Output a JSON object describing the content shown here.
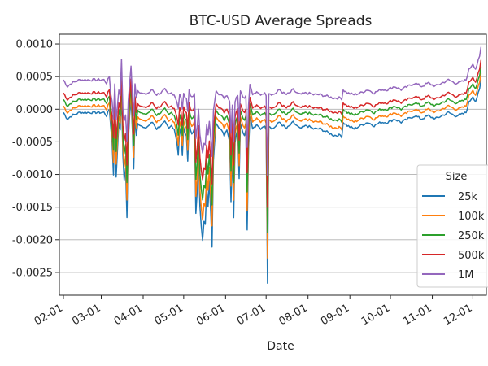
{
  "chart_data": {
    "type": "line",
    "title": "BTC-USD Average Spreads",
    "xlabel": "Date",
    "ylabel": "",
    "xlim": [
      -3,
      313
    ],
    "ylim": [
      -0.00285,
      0.00115
    ],
    "grid": true,
    "x_ticks": [
      {
        "x": 0,
        "label": "02-01"
      },
      {
        "x": 28,
        "label": "03-01"
      },
      {
        "x": 59,
        "label": "04-01"
      },
      {
        "x": 89,
        "label": "05-01"
      },
      {
        "x": 120,
        "label": "06-01"
      },
      {
        "x": 150,
        "label": "07-01"
      },
      {
        "x": 181,
        "label": "08-01"
      },
      {
        "x": 212,
        "label": "09-01"
      },
      {
        "x": 242,
        "label": "10-01"
      },
      {
        "x": 273,
        "label": "11-01"
      },
      {
        "x": 303,
        "label": "12-01"
      }
    ],
    "y_ticks": [
      {
        "v": 0.001,
        "label": "0.0010"
      },
      {
        "v": 0.0005,
        "label": "0.0005"
      },
      {
        "v": 0.0,
        "label": "0.0000"
      },
      {
        "v": -0.0005,
        "label": "-0.0005"
      },
      {
        "v": -0.001,
        "label": "-0.0010"
      },
      {
        "v": -0.0015,
        "label": "-0.0015"
      },
      {
        "v": -0.002,
        "label": "-0.0020"
      },
      {
        "v": -0.0025,
        "label": "-0.0025"
      }
    ],
    "legend": {
      "title": "Size",
      "placement": "lower-right"
    },
    "series": [
      {
        "name": "25k",
        "color": "#1f77b4",
        "offset": 0.0
      },
      {
        "name": "100k",
        "color": "#ff7f0e",
        "offset": 0.0001
      },
      {
        "name": "250k",
        "color": "#2ca02c",
        "offset": 0.0002
      },
      {
        "name": "500k",
        "color": "#d62728",
        "offset": 0.0003
      },
      {
        "name": "1M",
        "color": "#9467bd",
        "offset": 0.0005
      }
    ],
    "base_keypoints": [
      [
        0,
        -5e-05
      ],
      [
        3,
        -0.00015
      ],
      [
        6,
        -0.0001
      ],
      [
        12,
        -5e-05
      ],
      [
        18,
        -5e-05
      ],
      [
        24,
        -5e-05
      ],
      [
        30,
        -5e-05
      ],
      [
        32,
        -0.0001
      ],
      [
        34,
        0.0
      ],
      [
        36,
        -0.0005
      ],
      [
        37,
        -0.001
      ],
      [
        38,
        -0.0001
      ],
      [
        39,
        -0.00105
      ],
      [
        41,
        -0.0002
      ],
      [
        42,
        -0.0003
      ],
      [
        43,
        0.00025
      ],
      [
        44,
        -0.0007
      ],
      [
        45,
        -0.0011
      ],
      [
        46,
        -0.0009
      ],
      [
        47,
        -0.00165
      ],
      [
        48,
        -0.0005
      ],
      [
        49,
        -0.0001
      ],
      [
        50,
        0.00015
      ],
      [
        51,
        -0.0003
      ],
      [
        52,
        -0.0009
      ],
      [
        53,
        -0.0001
      ],
      [
        54,
        -0.0004
      ],
      [
        55,
        -0.0002
      ],
      [
        57,
        -0.00025
      ],
      [
        60,
        -0.0003
      ],
      [
        63,
        -0.00025
      ],
      [
        66,
        -0.0002
      ],
      [
        69,
        -0.0003
      ],
      [
        72,
        -0.00025
      ],
      [
        75,
        -0.0002
      ],
      [
        78,
        -0.0003
      ],
      [
        80,
        -0.00025
      ],
      [
        82,
        -0.0003
      ],
      [
        84,
        -0.0005
      ],
      [
        85,
        -0.0007
      ],
      [
        86,
        -0.0003
      ],
      [
        87,
        -0.0004
      ],
      [
        88,
        -0.0007
      ],
      [
        89,
        -0.0003
      ],
      [
        91,
        -0.0004
      ],
      [
        92,
        -0.0008
      ],
      [
        93,
        -0.0002
      ],
      [
        95,
        -0.0004
      ],
      [
        97,
        -0.0003
      ],
      [
        98,
        -0.0016
      ],
      [
        99,
        -0.00125
      ],
      [
        100,
        -0.0007
      ],
      [
        101,
        -0.0015
      ],
      [
        102,
        -0.0018
      ],
      [
        103,
        -0.002
      ],
      [
        104,
        -0.0017
      ],
      [
        105,
        -0.00175
      ],
      [
        106,
        -0.0012
      ],
      [
        107,
        -0.0015
      ],
      [
        108,
        -0.0011
      ],
      [
        109,
        -0.0016
      ],
      [
        110,
        -0.0021
      ],
      [
        111,
        -0.0008
      ],
      [
        112,
        -0.00045
      ],
      [
        113,
        -0.0002
      ],
      [
        116,
        -0.0003
      ],
      [
        119,
        -0.0004
      ],
      [
        121,
        -0.0003
      ],
      [
        123,
        -0.0005
      ],
      [
        124,
        -0.0014
      ],
      [
        125,
        -0.0006
      ],
      [
        126,
        -0.00165
      ],
      [
        127,
        -0.0005
      ],
      [
        128,
        -0.0004
      ],
      [
        129,
        -0.0003
      ],
      [
        130,
        -0.00105
      ],
      [
        131,
        -0.0002
      ],
      [
        132,
        -0.0003
      ],
      [
        134,
        -0.0004
      ],
      [
        135,
        -0.0003
      ],
      [
        136,
        -0.00185
      ],
      [
        137,
        -0.0006
      ],
      [
        138,
        -0.0001
      ],
      [
        140,
        -0.0003
      ],
      [
        143,
        -0.00025
      ],
      [
        146,
        -0.0003
      ],
      [
        148,
        -0.00025
      ],
      [
        150,
        -0.0003
      ],
      [
        151,
        -0.00265
      ],
      [
        152,
        -0.00025
      ],
      [
        155,
        -0.0003
      ],
      [
        160,
        -0.0002
      ],
      [
        165,
        -0.0003
      ],
      [
        170,
        -0.0002
      ],
      [
        175,
        -0.0003
      ],
      [
        180,
        -0.00025
      ],
      [
        185,
        -0.0003
      ],
      [
        190,
        -0.0003
      ],
      [
        195,
        -0.00035
      ],
      [
        200,
        -0.0004
      ],
      [
        205,
        -0.0004
      ],
      [
        206,
        -0.00042
      ],
      [
        207,
        -0.0002
      ],
      [
        210,
        -0.00025
      ],
      [
        215,
        -0.0003
      ],
      [
        220,
        -0.00025
      ],
      [
        225,
        -0.0002
      ],
      [
        230,
        -0.00025
      ],
      [
        235,
        -0.0002
      ],
      [
        240,
        -0.0002
      ],
      [
        245,
        -0.00015
      ],
      [
        250,
        -0.0002
      ],
      [
        255,
        -0.00015
      ],
      [
        260,
        -0.0001
      ],
      [
        265,
        -0.00015
      ],
      [
        270,
        -0.0001
      ],
      [
        275,
        -0.00015
      ],
      [
        280,
        -0.0001
      ],
      [
        285,
        -5e-05
      ],
      [
        290,
        -0.0001
      ],
      [
        295,
        -8e-05
      ],
      [
        298,
        -5e-05
      ],
      [
        300,
        0.0001
      ],
      [
        303,
        0.0002
      ],
      [
        305,
        0.00012
      ],
      [
        308,
        0.0003
      ],
      [
        309,
        0.00045
      ]
    ]
  }
}
